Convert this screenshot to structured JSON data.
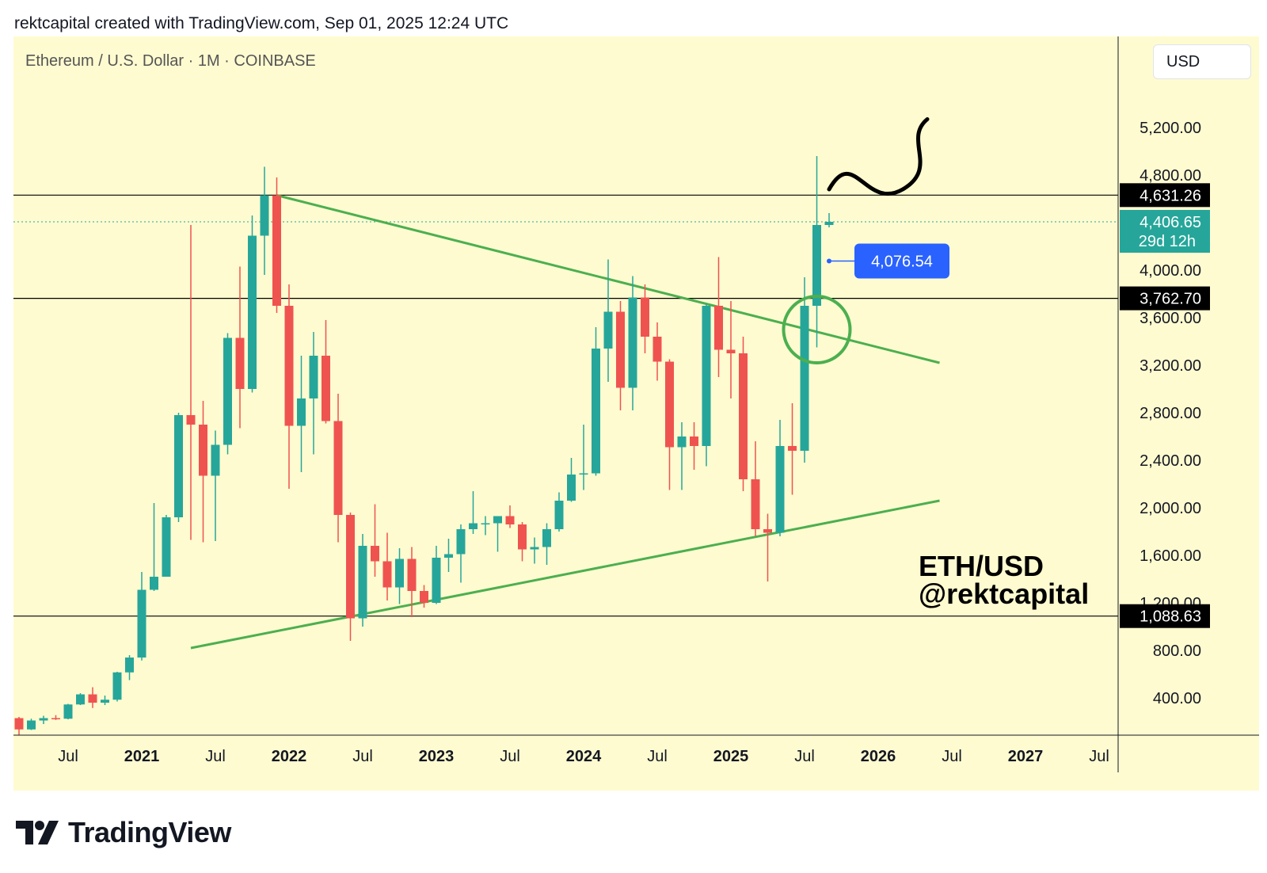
{
  "header": {
    "text": "rektcapital created with TradingView.com, Sep 01, 2025 12:24 UTC"
  },
  "chart_title": "Ethereum / U.S. Dollar · 1M · COINBASE",
  "currency_button": "USD",
  "watermark_lines": [
    "ETH/USD",
    "@rektcapital"
  ],
  "footer_brand": "TradingView",
  "colors": {
    "up": "#26a69a",
    "down": "#ef5350",
    "trendline": "#4caf50",
    "background": "#fffbd0",
    "note_tag": "#2962ff"
  },
  "chart_data": {
    "type": "candlestick",
    "title": "Ethereum / U.S. Dollar · 1M · COINBASE",
    "interval": "1M",
    "ylim": [
      0,
      5600
    ],
    "y_ticks": [
      "400.00",
      "800.00",
      "1,200.00",
      "1,600.00",
      "2,000.00",
      "2,400.00",
      "2,800.00",
      "3,200.00",
      "3,600.00",
      "4,000.00",
      "4,800.00",
      "5,200.00"
    ],
    "x_ticks": [
      "Jul",
      "2021",
      "Jul",
      "2022",
      "Jul",
      "2023",
      "Jul",
      "2024",
      "Jul",
      "2025",
      "Jul",
      "2026",
      "Jul",
      "2027",
      "Jul"
    ],
    "candles": [
      {
        "date": "2020-03",
        "o": 230,
        "h": 240,
        "l": 90,
        "c": 135
      },
      {
        "date": "2020-04",
        "o": 135,
        "h": 225,
        "l": 130,
        "c": 210
      },
      {
        "date": "2020-05",
        "o": 210,
        "h": 250,
        "l": 180,
        "c": 230
      },
      {
        "date": "2020-06",
        "o": 230,
        "h": 255,
        "l": 215,
        "c": 225
      },
      {
        "date": "2020-07",
        "o": 225,
        "h": 350,
        "l": 220,
        "c": 345
      },
      {
        "date": "2020-08",
        "o": 345,
        "h": 440,
        "l": 340,
        "c": 430
      },
      {
        "date": "2020-09",
        "o": 430,
        "h": 490,
        "l": 315,
        "c": 360
      },
      {
        "date": "2020-10",
        "o": 360,
        "h": 420,
        "l": 340,
        "c": 385
      },
      {
        "date": "2020-11",
        "o": 385,
        "h": 620,
        "l": 370,
        "c": 615
      },
      {
        "date": "2020-12",
        "o": 615,
        "h": 760,
        "l": 550,
        "c": 740
      },
      {
        "date": "2021-01",
        "o": 740,
        "h": 1460,
        "l": 715,
        "c": 1310
      },
      {
        "date": "2021-02",
        "o": 1310,
        "h": 2040,
        "l": 1300,
        "c": 1420
      },
      {
        "date": "2021-03",
        "o": 1420,
        "h": 1940,
        "l": 1430,
        "c": 1920
      },
      {
        "date": "2021-04",
        "o": 1920,
        "h": 2800,
        "l": 1880,
        "c": 2780
      },
      {
        "date": "2021-05",
        "o": 2780,
        "h": 4380,
        "l": 1730,
        "c": 2700
      },
      {
        "date": "2021-06",
        "o": 2700,
        "h": 2900,
        "l": 1710,
        "c": 2270
      },
      {
        "date": "2021-07",
        "o": 2270,
        "h": 2650,
        "l": 1720,
        "c": 2530
      },
      {
        "date": "2021-08",
        "o": 2530,
        "h": 3470,
        "l": 2450,
        "c": 3430
      },
      {
        "date": "2021-09",
        "o": 3430,
        "h": 4030,
        "l": 2670,
        "c": 3000
      },
      {
        "date": "2021-10",
        "o": 3000,
        "h": 4460,
        "l": 2970,
        "c": 4290
      },
      {
        "date": "2021-11",
        "o": 4290,
        "h": 4870,
        "l": 3960,
        "c": 4630
      },
      {
        "date": "2021-12",
        "o": 4630,
        "h": 4780,
        "l": 3640,
        "c": 3700
      },
      {
        "date": "2022-01",
        "o": 3700,
        "h": 3880,
        "l": 2160,
        "c": 2690
      },
      {
        "date": "2022-02",
        "o": 2690,
        "h": 3280,
        "l": 2300,
        "c": 2920
      },
      {
        "date": "2022-03",
        "o": 2920,
        "h": 3480,
        "l": 2450,
        "c": 3280
      },
      {
        "date": "2022-04",
        "o": 3280,
        "h": 3580,
        "l": 2710,
        "c": 2730
      },
      {
        "date": "2022-05",
        "o": 2730,
        "h": 2960,
        "l": 1710,
        "c": 1940
      },
      {
        "date": "2022-06",
        "o": 1940,
        "h": 1960,
        "l": 880,
        "c": 1070
      },
      {
        "date": "2022-07",
        "o": 1070,
        "h": 1780,
        "l": 1000,
        "c": 1680
      },
      {
        "date": "2022-08",
        "o": 1680,
        "h": 2030,
        "l": 1420,
        "c": 1550
      },
      {
        "date": "2022-09",
        "o": 1550,
        "h": 1790,
        "l": 1220,
        "c": 1330
      },
      {
        "date": "2022-10",
        "o": 1330,
        "h": 1660,
        "l": 1190,
        "c": 1570
      },
      {
        "date": "2022-11",
        "o": 1570,
        "h": 1670,
        "l": 1080,
        "c": 1300
      },
      {
        "date": "2022-12",
        "o": 1300,
        "h": 1350,
        "l": 1160,
        "c": 1200
      },
      {
        "date": "2023-01",
        "o": 1200,
        "h": 1680,
        "l": 1190,
        "c": 1580
      },
      {
        "date": "2023-02",
        "o": 1580,
        "h": 1740,
        "l": 1460,
        "c": 1610
      },
      {
        "date": "2023-03",
        "o": 1610,
        "h": 1860,
        "l": 1370,
        "c": 1820
      },
      {
        "date": "2023-04",
        "o": 1820,
        "h": 2140,
        "l": 1780,
        "c": 1870
      },
      {
        "date": "2023-05",
        "o": 1870,
        "h": 1930,
        "l": 1770,
        "c": 1870
      },
      {
        "date": "2023-06",
        "o": 1870,
        "h": 1930,
        "l": 1630,
        "c": 1930
      },
      {
        "date": "2023-07",
        "o": 1930,
        "h": 2020,
        "l": 1830,
        "c": 1860
      },
      {
        "date": "2023-08",
        "o": 1860,
        "h": 1880,
        "l": 1550,
        "c": 1650
      },
      {
        "date": "2023-09",
        "o": 1650,
        "h": 1750,
        "l": 1530,
        "c": 1670
      },
      {
        "date": "2023-10",
        "o": 1670,
        "h": 1870,
        "l": 1520,
        "c": 1820
      },
      {
        "date": "2023-11",
        "o": 1820,
        "h": 2130,
        "l": 1800,
        "c": 2060
      },
      {
        "date": "2023-12",
        "o": 2060,
        "h": 2420,
        "l": 2050,
        "c": 2280
      },
      {
        "date": "2024-01",
        "o": 2280,
        "h": 2700,
        "l": 2150,
        "c": 2290
      },
      {
        "date": "2024-02",
        "o": 2290,
        "h": 3520,
        "l": 2270,
        "c": 3340
      },
      {
        "date": "2024-03",
        "o": 3340,
        "h": 4090,
        "l": 3060,
        "c": 3650
      },
      {
        "date": "2024-04",
        "o": 3650,
        "h": 3740,
        "l": 2820,
        "c": 3010
      },
      {
        "date": "2024-05",
        "o": 3010,
        "h": 3950,
        "l": 2820,
        "c": 3770
      },
      {
        "date": "2024-06",
        "o": 3770,
        "h": 3880,
        "l": 3300,
        "c": 3440
      },
      {
        "date": "2024-07",
        "o": 3440,
        "h": 3560,
        "l": 3070,
        "c": 3230
      },
      {
        "date": "2024-08",
        "o": 3230,
        "h": 3250,
        "l": 2150,
        "c": 2510
      },
      {
        "date": "2024-09",
        "o": 2510,
        "h": 2720,
        "l": 2150,
        "c": 2600
      },
      {
        "date": "2024-10",
        "o": 2600,
        "h": 2720,
        "l": 2320,
        "c": 2520
      },
      {
        "date": "2024-11",
        "o": 2520,
        "h": 3720,
        "l": 2350,
        "c": 3700
      },
      {
        "date": "2024-12",
        "o": 3700,
        "h": 4110,
        "l": 3100,
        "c": 3330
      },
      {
        "date": "2025-01",
        "o": 3330,
        "h": 3740,
        "l": 2920,
        "c": 3300
      },
      {
        "date": "2025-02",
        "o": 3300,
        "h": 3440,
        "l": 2140,
        "c": 2240
      },
      {
        "date": "2025-03",
        "o": 2240,
        "h": 2560,
        "l": 1760,
        "c": 1820
      },
      {
        "date": "2025-04",
        "o": 1820,
        "h": 1950,
        "l": 1380,
        "c": 1790
      },
      {
        "date": "2025-05",
        "o": 1790,
        "h": 2740,
        "l": 1760,
        "c": 2520
      },
      {
        "date": "2025-06",
        "o": 2520,
        "h": 2880,
        "l": 2110,
        "c": 2480
      },
      {
        "date": "2025-07",
        "o": 2480,
        "h": 3940,
        "l": 2380,
        "c": 3700
      },
      {
        "date": "2025-08",
        "o": 3700,
        "h": 4960,
        "l": 3350,
        "c": 4380
      },
      {
        "date": "2025-09",
        "o": 4380,
        "h": 4480,
        "l": 4360,
        "c": 4406.65
      }
    ],
    "horizontal_levels": [
      {
        "value": 4631.26,
        "label": "4,631.26"
      },
      {
        "value": 3762.7,
        "label": "3,762.70"
      },
      {
        "value": 1088.63,
        "label": "1,088.63"
      }
    ],
    "current_price": {
      "value": 4406.65,
      "label": "4,406.65",
      "countdown": "29d 12h"
    },
    "annotation_price": {
      "value": 4076.54,
      "label": "4,076.54"
    },
    "trendlines": [
      {
        "from": {
          "date": "2021-12",
          "value": 4630
        },
        "to": {
          "date": "2026-06",
          "value": 3220
        }
      },
      {
        "from": {
          "date": "2021-05",
          "value": 820
        },
        "to": {
          "date": "2026-06",
          "value": 2060
        }
      }
    ]
  }
}
